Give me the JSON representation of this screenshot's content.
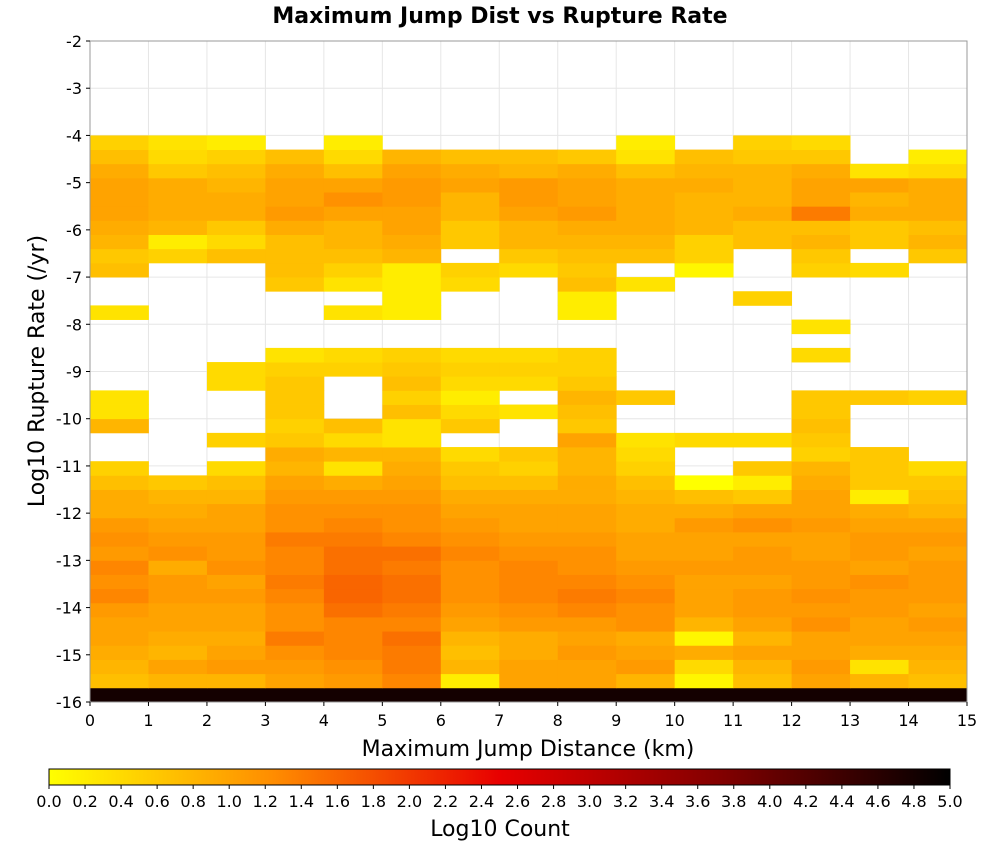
{
  "chart_data": {
    "type": "heatmap",
    "title": "Maximum Jump Dist vs Rupture Rate",
    "xlabel": "Maximum Jump Distance (km)",
    "ylabel": "Log10 Rupture Rate (/yr)",
    "colorbar_label": "Log10 Count",
    "xlim": [
      0,
      15
    ],
    "ylim": [
      -16,
      -2
    ],
    "x_ticks": [
      "0",
      "1",
      "2",
      "3",
      "4",
      "5",
      "6",
      "7",
      "8",
      "9",
      "10",
      "11",
      "12",
      "13",
      "14",
      "15"
    ],
    "y_ticks": [
      "-2",
      "-3",
      "-4",
      "-5",
      "-6",
      "-7",
      "-8",
      "-9",
      "-10",
      "-11",
      "-12",
      "-13",
      "-14",
      "-15",
      "-16"
    ],
    "colorbar_ticks": [
      "0.0",
      "0.2",
      "0.4",
      "0.6",
      "0.8",
      "1.0",
      "1.2",
      "1.4",
      "1.6",
      "1.8",
      "2.0",
      "2.2",
      "2.4",
      "2.6",
      "2.8",
      "3.0",
      "3.2",
      "3.4",
      "3.6",
      "3.8",
      "4.0",
      "4.2",
      "4.4",
      "4.6",
      "4.8",
      "5.0"
    ],
    "color_range": [
      0,
      5
    ],
    "colormap": [
      "#ffff00",
      "#ff8c00",
      "#e80000",
      "#800000",
      "#000000"
    ],
    "grid": true,
    "x_bins": {
      "start": 0,
      "step": 1,
      "count": 15
    },
    "y_bins": {
      "start": -16,
      "step": 0.3,
      "count": 40
    },
    "values": [
      [
        4.8,
        4.8,
        4.8,
        4.8,
        4.8,
        4.8,
        4.8,
        4.8,
        4.8,
        4.8,
        4.8,
        4.8,
        4.8,
        4.8,
        4.8
      ],
      [
        0.7,
        0.8,
        0.8,
        1.0,
        1.1,
        1.3,
        0.2,
        1.0,
        1.0,
        0.8,
        0.1,
        0.7,
        1.0,
        0.8,
        0.7
      ],
      [
        0.8,
        1.0,
        1.1,
        1.1,
        1.2,
        1.4,
        0.8,
        1.0,
        1.0,
        1.1,
        0.4,
        0.8,
        1.1,
        0.3,
        0.8
      ],
      [
        0.9,
        0.8,
        1.0,
        1.2,
        1.3,
        1.4,
        0.7,
        0.9,
        1.1,
        1.0,
        0.9,
        1.0,
        1.0,
        0.9,
        0.9
      ],
      [
        1.0,
        0.9,
        0.9,
        1.4,
        1.3,
        1.5,
        0.8,
        0.9,
        1.0,
        0.9,
        0.1,
        0.8,
        1.0,
        1.0,
        1.0
      ],
      [
        1.0,
        1.0,
        1.0,
        1.2,
        1.3,
        1.3,
        1.0,
        1.1,
        1.1,
        1.2,
        0.8,
        1.0,
        1.2,
        1.0,
        1.1
      ],
      [
        1.1,
        1.0,
        1.0,
        1.2,
        1.5,
        1.4,
        1.1,
        1.2,
        1.3,
        1.2,
        1.0,
        1.1,
        1.1,
        1.1,
        1.0
      ],
      [
        1.3,
        1.1,
        1.1,
        1.3,
        1.6,
        1.5,
        1.2,
        1.3,
        1.4,
        1.3,
        1.0,
        1.1,
        1.2,
        1.1,
        1.1
      ],
      [
        1.2,
        1.1,
        1.0,
        1.4,
        1.6,
        1.5,
        1.2,
        1.3,
        1.3,
        1.2,
        1.0,
        1.0,
        1.1,
        1.2,
        1.1
      ],
      [
        1.3,
        0.9,
        1.2,
        1.3,
        1.5,
        1.4,
        1.2,
        1.3,
        1.2,
        1.1,
        1.1,
        1.1,
        1.1,
        1.0,
        1.1
      ],
      [
        1.1,
        1.2,
        1.1,
        1.3,
        1.5,
        1.5,
        1.3,
        1.2,
        1.2,
        1.0,
        1.0,
        1.1,
        1.0,
        1.1,
        1.0
      ],
      [
        1.2,
        1.1,
        1.1,
        1.4,
        1.4,
        1.3,
        1.2,
        1.1,
        1.1,
        1.0,
        1.0,
        1.0,
        1.0,
        1.1,
        1.1
      ],
      [
        1.1,
        1.0,
        1.0,
        1.2,
        1.3,
        1.2,
        1.1,
        1.0,
        1.0,
        0.9,
        1.1,
        1.2,
        1.1,
        1.0,
        1.0
      ],
      [
        0.9,
        0.9,
        1.0,
        1.2,
        1.2,
        1.2,
        1.0,
        1.0,
        1.0,
        0.9,
        0.9,
        1.0,
        1.0,
        0.9,
        0.8
      ],
      [
        0.9,
        0.8,
        0.8,
        1.1,
        1.1,
        1.1,
        0.9,
        0.9,
        0.9,
        0.8,
        0.7,
        0.6,
        1.0,
        0.2,
        0.7
      ],
      [
        0.7,
        0.6,
        0.7,
        1.0,
        0.9,
        1.0,
        0.7,
        0.7,
        0.9,
        0.7,
        0.0,
        0.2,
        0.9,
        0.6,
        0.6
      ],
      [
        0.5,
        -1,
        0.4,
        0.8,
        0.3,
        0.9,
        0.6,
        0.5,
        0.8,
        0.5,
        -1,
        0.6,
        0.8,
        0.6,
        0.4
      ],
      [
        -1,
        -1,
        -1,
        0.9,
        0.8,
        0.8,
        0.4,
        0.6,
        0.8,
        0.4,
        -1,
        -1,
        0.5,
        0.6,
        -1
      ],
      [
        -1,
        -1,
        0.5,
        0.6,
        0.4,
        0.3,
        -1,
        -1,
        1.0,
        0.3,
        0.4,
        0.4,
        0.6,
        -1,
        -1
      ],
      [
        0.8,
        -1,
        -1,
        0.5,
        0.7,
        0.3,
        0.6,
        -1,
        0.6,
        -1,
        -1,
        -1,
        0.7,
        -1,
        -1
      ],
      [
        0.3,
        -1,
        -1,
        0.6,
        -1,
        0.7,
        0.4,
        0.3,
        0.7,
        -1,
        -1,
        -1,
        0.6,
        -1,
        -1
      ],
      [
        0.3,
        -1,
        -1,
        0.6,
        -1,
        0.5,
        0.2,
        -1,
        0.8,
        0.6,
        -1,
        -1,
        0.6,
        0.6,
        0.5
      ],
      [
        -1,
        -1,
        0.4,
        0.6,
        -1,
        0.7,
        0.4,
        0.4,
        0.6,
        -1,
        -1,
        -1,
        -1,
        -1,
        -1
      ],
      [
        -1,
        -1,
        0.4,
        0.5,
        0.5,
        0.6,
        0.5,
        0.5,
        0.5,
        -1,
        -1,
        -1,
        -1,
        -1,
        -1
      ],
      [
        -1,
        -1,
        -1,
        0.3,
        0.4,
        0.5,
        0.4,
        0.4,
        0.5,
        -1,
        -1,
        -1,
        0.4,
        -1,
        -1
      ],
      [
        -1,
        -1,
        -1,
        -1,
        -1,
        -1,
        -1,
        -1,
        -1,
        -1,
        -1,
        -1,
        -1,
        -1,
        -1
      ],
      [
        -1,
        -1,
        -1,
        -1,
        -1,
        -1,
        -1,
        -1,
        -1,
        -1,
        -1,
        -1,
        0.3,
        -1,
        -1
      ],
      [
        0.3,
        -1,
        -1,
        -1,
        0.3,
        0.2,
        -1,
        -1,
        0.2,
        -1,
        -1,
        -1,
        -1,
        -1,
        -1
      ],
      [
        -1,
        -1,
        -1,
        -1,
        -1,
        0.2,
        -1,
        -1,
        0.2,
        -1,
        -1,
        0.5,
        -1,
        -1,
        -1
      ],
      [
        -1,
        -1,
        -1,
        0.6,
        0.3,
        0.2,
        0.4,
        -1,
        0.7,
        0.3,
        -1,
        -1,
        -1,
        -1,
        -1
      ],
      [
        0.7,
        -1,
        -1,
        0.7,
        0.5,
        0.2,
        0.5,
        0.4,
        0.6,
        -1,
        0.1,
        -1,
        0.5,
        0.4,
        -1
      ],
      [
        0.6,
        0.5,
        0.7,
        0.7,
        0.7,
        0.8,
        -1,
        0.6,
        0.7,
        0.7,
        0.5,
        -1,
        0.6,
        -1,
        0.6
      ],
      [
        0.8,
        0.2,
        0.4,
        0.7,
        0.8,
        0.9,
        0.6,
        0.8,
        0.8,
        0.8,
        0.5,
        0.7,
        0.8,
        0.6,
        0.8
      ],
      [
        0.9,
        0.8,
        0.6,
        0.9,
        0.8,
        1.0,
        0.6,
        0.8,
        0.9,
        0.9,
        0.8,
        0.7,
        0.7,
        0.6,
        0.7
      ],
      [
        1.0,
        0.9,
        0.9,
        1.1,
        1.0,
        1.0,
        0.8,
        1.0,
        1.1,
        0.9,
        0.8,
        0.9,
        1.4,
        0.9,
        0.9
      ],
      [
        1.0,
        0.9,
        0.9,
        1.0,
        1.2,
        1.1,
        0.8,
        1.1,
        1.0,
        0.9,
        0.8,
        0.8,
        1.0,
        0.8,
        0.9
      ],
      [
        1.0,
        0.9,
        0.8,
        1.0,
        1.0,
        1.1,
        1.0,
        1.1,
        1.0,
        0.9,
        0.9,
        0.8,
        1.0,
        1.0,
        0.9
      ],
      [
        0.9,
        0.6,
        0.7,
        0.9,
        0.7,
        1.0,
        0.9,
        0.8,
        0.9,
        0.7,
        0.8,
        0.8,
        0.9,
        0.3,
        0.4
      ],
      [
        0.7,
        0.4,
        0.5,
        0.7,
        0.4,
        0.8,
        0.7,
        0.7,
        0.6,
        0.3,
        0.7,
        0.6,
        0.6,
        -1,
        0.2
      ],
      [
        0.5,
        0.3,
        0.2,
        -1,
        0.2,
        -1,
        -1,
        -1,
        -1,
        0.2,
        -1,
        0.5,
        0.4,
        -1,
        -1
      ]
    ]
  }
}
